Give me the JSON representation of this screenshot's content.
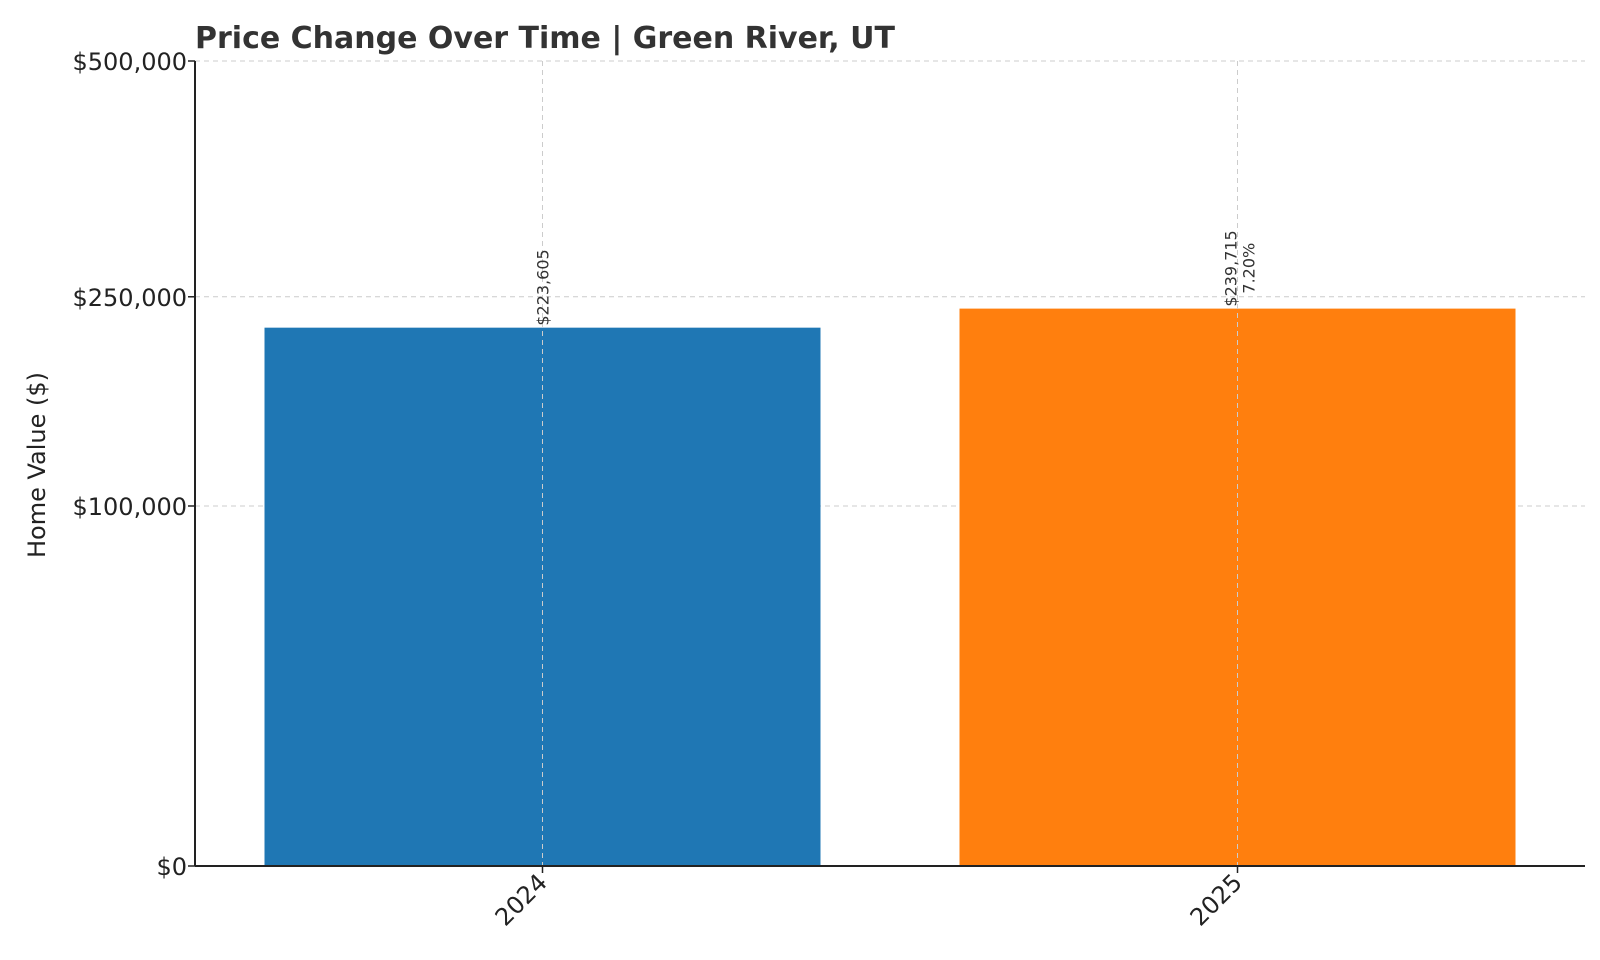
{
  "chart_data": {
    "type": "bar",
    "title": "Price Change Over Time | Green River, UT",
    "xlabel": "",
    "ylabel": "Home Value ($)",
    "categories": [
      "2024",
      "2025"
    ],
    "values": [
      223605,
      239715
    ],
    "value_labels": [
      "$223,605",
      "$239,715"
    ],
    "change_labels": [
      "",
      "7.20%"
    ],
    "bar_colors": [
      "#1f77b4",
      "#ff7f0e"
    ],
    "ylim": [
      0,
      500000
    ],
    "y_ticks": [
      0,
      100000,
      250000,
      500000
    ],
    "y_tick_labels": [
      "$0",
      "$100,000",
      "$250,000",
      "$500,000"
    ],
    "y_scale": "square-root",
    "grid": true
  }
}
